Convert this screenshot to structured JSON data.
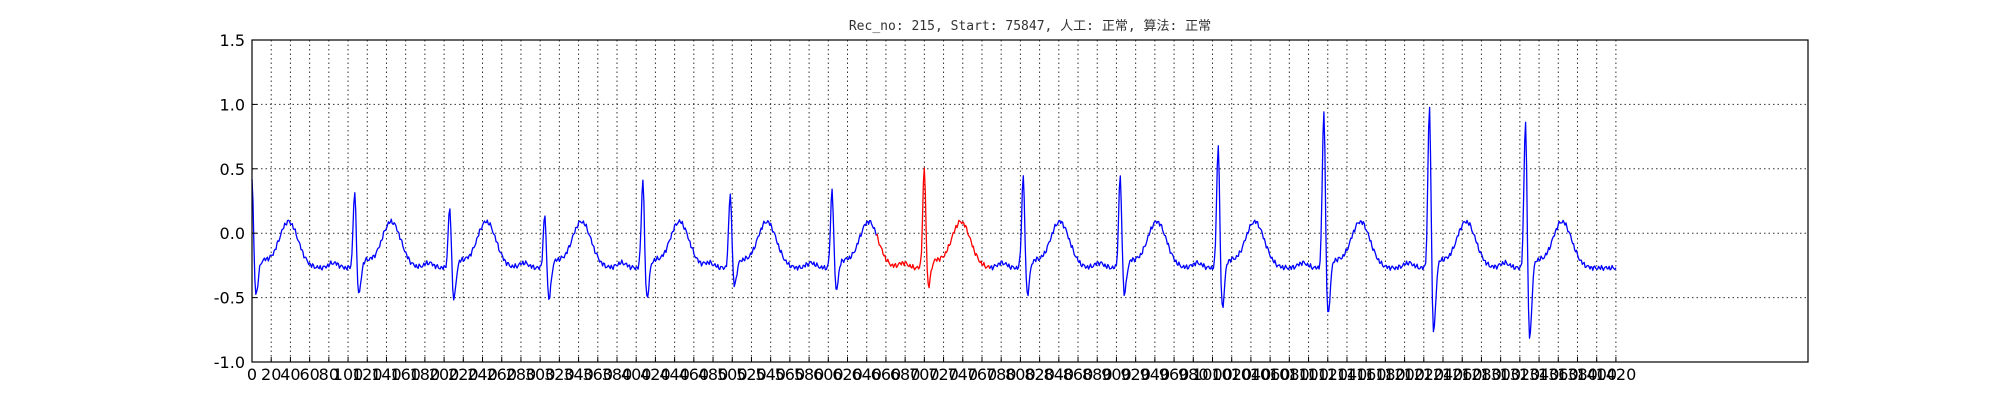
{
  "chart_data": {
    "type": "line",
    "title": "Rec_no: 215, Start: 75847, 人工: 正常, 算法: 正常",
    "xlabel": "",
    "ylabel": "",
    "xlim": [
      0,
      1620
    ],
    "ylim": [
      -1.0,
      1.5
    ],
    "grid": true,
    "yticks": [
      1.5,
      1.0,
      0.5,
      0.0,
      -0.5,
      -1.0
    ],
    "ytick_labels": [
      "1.5",
      "1.0",
      "0.5",
      "0.0",
      "-0.5",
      "-1.0"
    ],
    "xticks": [
      0,
      20,
      40,
      60,
      80,
      100,
      120,
      140,
      160,
      180,
      200,
      220,
      240,
      260,
      280,
      300,
      320,
      340,
      360,
      380,
      400,
      420,
      440,
      460,
      480,
      500,
      520,
      540,
      560,
      580,
      600,
      620,
      640,
      660,
      680,
      700,
      720,
      740,
      760,
      780,
      800,
      820,
      840,
      860,
      880,
      900,
      920,
      940,
      960,
      980,
      1000,
      1020,
      1040,
      1060,
      1080,
      1100,
      1120,
      1140,
      1160,
      1180,
      1200,
      1220,
      1240,
      1260,
      1280,
      1300,
      1320,
      1340,
      1360,
      1380,
      1400,
      1420
    ],
    "xtick_labels": [
      "0",
      "20",
      "40",
      "60",
      "80",
      "100",
      "120",
      "140",
      "160",
      "180",
      "200",
      "220",
      "240",
      "260",
      "280",
      "300",
      "320",
      "340",
      "360",
      "380",
      "400",
      "420",
      "440",
      "460",
      "480",
      "500",
      "520",
      "540",
      "560",
      "580",
      "600",
      "620",
      "640",
      "660",
      "680",
      "700",
      "720",
      "740",
      "760",
      "780",
      "800",
      "820",
      "840",
      "860",
      "880",
      "900",
      "920",
      "940",
      "960",
      "980",
      "1000",
      "1020",
      "1040",
      "1060",
      "1080",
      "1100",
      "1120",
      "1140",
      "1160",
      "1180",
      "1200",
      "1220",
      "1240",
      "1260",
      "1280",
      "1300",
      "1320",
      "1340",
      "1360",
      "1380",
      "1400",
      "1420"
    ],
    "series": [
      {
        "color": "#0000ff",
        "segments": [
          {
            "x_range": [
              0,
              650
            ]
          },
          {
            "x_range": [
              768,
              1420
            ]
          }
        ]
      },
      {
        "color": "#ff0000",
        "segments": [
          {
            "x_range": [
              650,
              768
            ]
          }
        ]
      }
    ],
    "beats": [
      {
        "r_x": 0,
        "r_y": 0.45,
        "s_y": -0.52
      },
      {
        "r_x": 107,
        "r_y": 0.36,
        "s_y": -0.52
      },
      {
        "r_x": 206,
        "r_y": 0.24,
        "s_y": -0.55
      },
      {
        "r_x": 305,
        "r_y": 0.18,
        "s_y": -0.55
      },
      {
        "r_x": 407,
        "r_y": 0.46,
        "s_y": -0.55
      },
      {
        "r_x": 498,
        "r_y": 0.34,
        "s_y": -0.45
      },
      {
        "r_x": 604,
        "r_y": 0.37,
        "s_y": -0.48
      },
      {
        "r_x": 700,
        "r_y": 0.53,
        "s_y": -0.46
      },
      {
        "r_x": 803,
        "r_y": 0.48,
        "s_y": -0.52
      },
      {
        "r_x": 904,
        "r_y": 0.48,
        "s_y": -0.52
      },
      {
        "r_x": 1006,
        "r_y": 0.74,
        "s_y": -0.63
      },
      {
        "r_x": 1116,
        "r_y": 1.03,
        "s_y": -0.7
      },
      {
        "r_x": 1226,
        "r_y": 1.08,
        "s_y": -0.83
      },
      {
        "r_x": 1326,
        "r_y": 0.98,
        "s_y": -0.88
      }
    ]
  }
}
